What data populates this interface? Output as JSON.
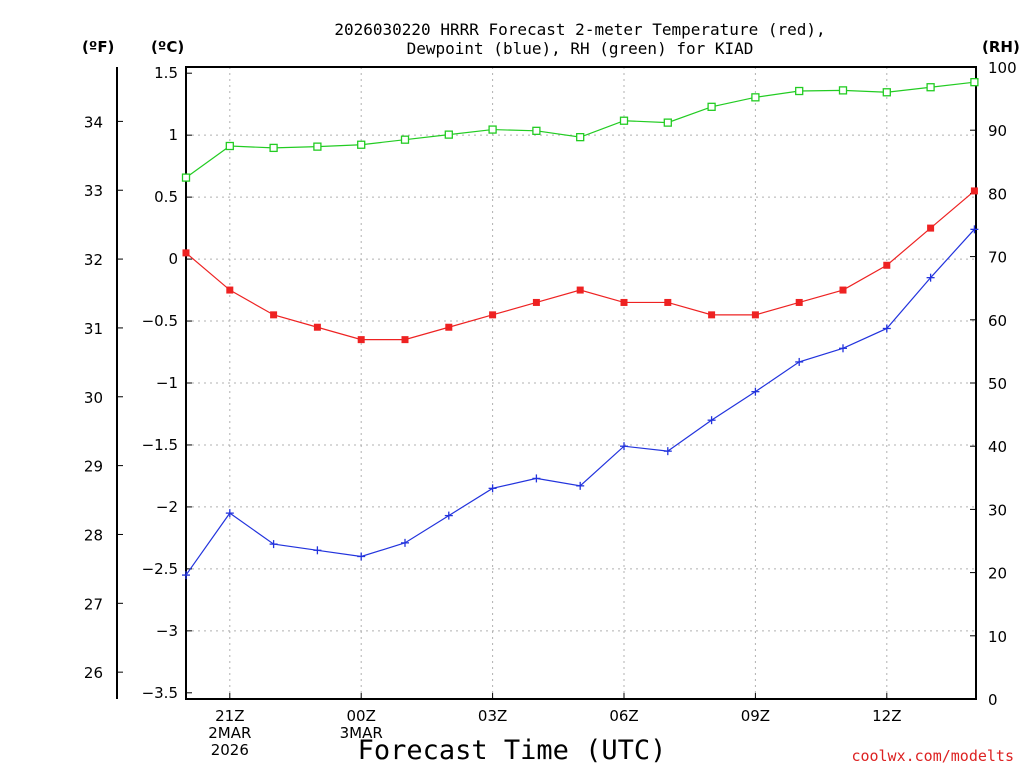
{
  "chart_data": {
    "type": "line",
    "title_lines": [
      "2026030220 HRRR Forecast 2-meter Temperature (red),",
      "Dewpoint (blue), RH (green) for KIAD"
    ],
    "xlabel": "Forecast Time (UTC)",
    "credit": "coolwx.com/modelts",
    "units": {
      "fahrenheit": "(ºF)",
      "celsius": "(ºC)",
      "rh": "(RH)"
    },
    "x_hours": [
      0,
      1,
      2,
      3,
      4,
      5,
      6,
      7,
      8,
      9,
      10,
      11,
      12,
      13,
      14,
      15,
      16,
      17,
      18
    ],
    "x_ticks": [
      {
        "hour": 1,
        "lines": [
          "21Z",
          "2MAR",
          "2026"
        ]
      },
      {
        "hour": 4,
        "lines": [
          "00Z",
          "3MAR"
        ]
      },
      {
        "hour": 7,
        "lines": [
          "03Z"
        ]
      },
      {
        "hour": 10,
        "lines": [
          "06Z"
        ]
      },
      {
        "hour": 13,
        "lines": [
          "09Z"
        ]
      },
      {
        "hour": 16,
        "lines": [
          "12Z"
        ]
      }
    ],
    "celsius_axis": {
      "range": [
        -3.55,
        1.55
      ],
      "ticks": [
        "-3.5",
        "-3",
        "-2.5",
        "-2",
        "-1.5",
        "-1",
        "-0.5",
        "0",
        "0.5",
        "1",
        "1.5"
      ],
      "tick_values": [
        -3.5,
        -3,
        -2.5,
        -2,
        -1.5,
        -1,
        -0.5,
        0,
        0.5,
        1,
        1.5
      ]
    },
    "fahrenheit_axis": {
      "ticks": [
        "26",
        "27",
        "28",
        "29",
        "30",
        "31",
        "32",
        "33",
        "34"
      ],
      "tick_values": [
        26,
        27,
        28,
        29,
        30,
        31,
        32,
        33,
        34
      ]
    },
    "rh_axis": {
      "range": [
        0,
        100
      ],
      "ticks": [
        "0",
        "10",
        "20",
        "30",
        "40",
        "50",
        "60",
        "70",
        "80",
        "90",
        "100"
      ],
      "tick_values": [
        0,
        10,
        20,
        30,
        40,
        50,
        60,
        70,
        80,
        90,
        100
      ]
    },
    "series": [
      {
        "name": "Temperature",
        "units": "C",
        "color": "#ee2222",
        "values": [
          0.05,
          -0.25,
          -0.45,
          -0.55,
          -0.65,
          -0.65,
          -0.55,
          -0.45,
          -0.35,
          -0.25,
          -0.35,
          -0.35,
          -0.45,
          -0.45,
          -0.35,
          -0.25,
          -0.05,
          0.25,
          0.55
        ]
      },
      {
        "name": "Dewpoint",
        "units": "C",
        "color": "#2233dd",
        "values": [
          -2.55,
          -2.05,
          -2.3,
          -2.35,
          -2.4,
          -2.29,
          -2.07,
          -1.85,
          -1.77,
          -1.83,
          -1.51,
          -1.55,
          -1.3,
          -1.07,
          -0.83,
          -0.72,
          -0.56,
          -0.15,
          0.24
        ]
      },
      {
        "name": "RH",
        "units": "%",
        "color": "#22cc22",
        "values": [
          82.5,
          87.5,
          87.2,
          87.4,
          87.7,
          88.5,
          89.3,
          90.1,
          89.9,
          88.9,
          91.5,
          91.2,
          93.7,
          95.2,
          96.2,
          96.3,
          96.0,
          96.8,
          97.6
        ]
      }
    ]
  }
}
